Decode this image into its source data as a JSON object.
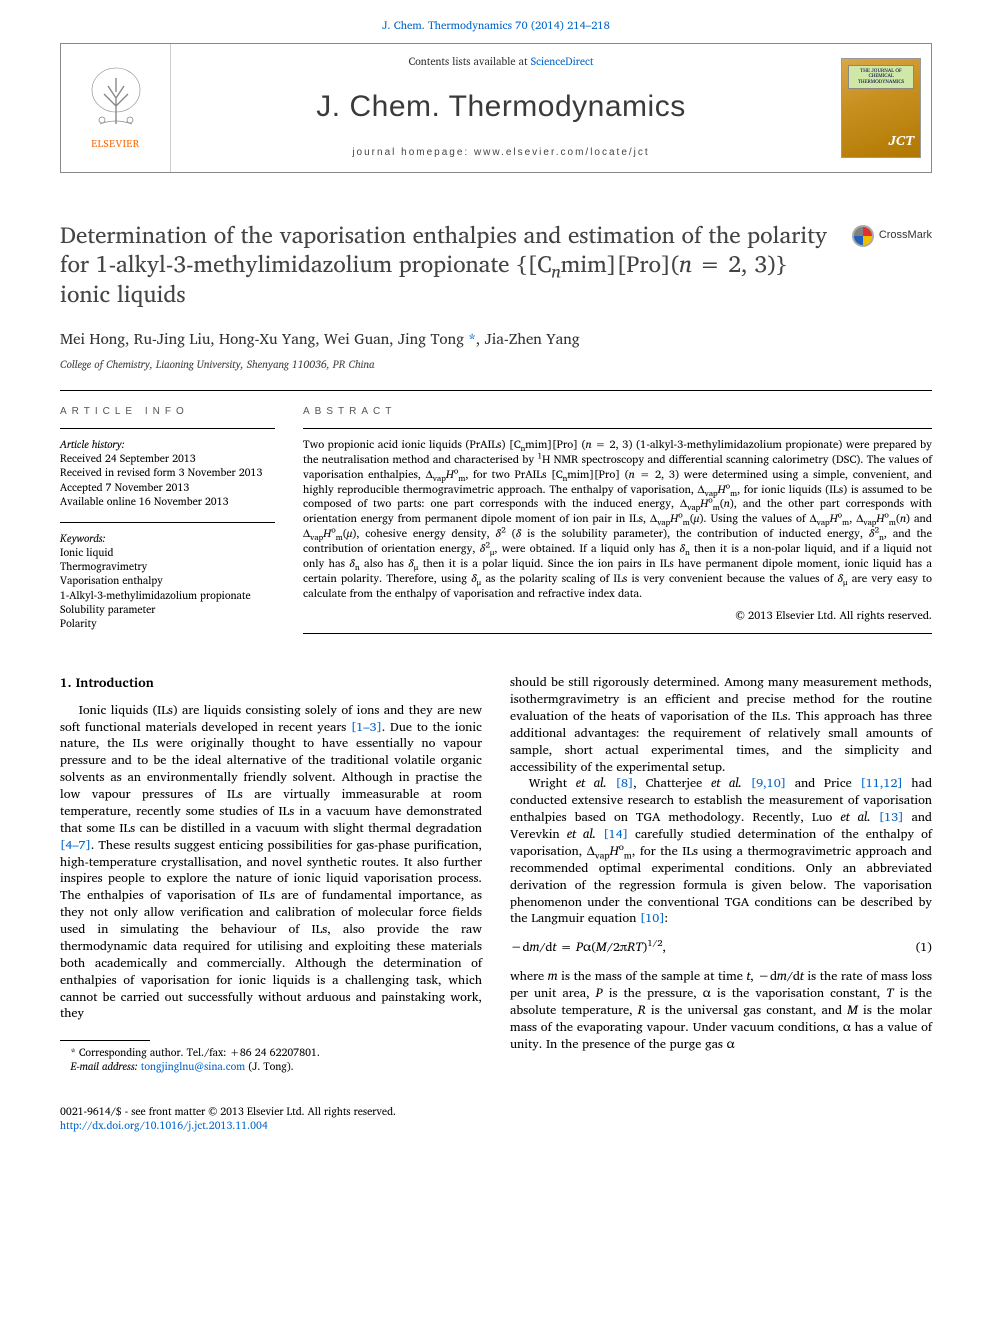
{
  "header": {
    "citation_prefix": "J. Chem. Thermodynamics 70 (2014) 214–218",
    "contents_text": "Contents lists available at ",
    "contents_link": "ScienceDirect",
    "journal_title": "J. Chem. Thermodynamics",
    "homepage_label": "journal homepage: www.elsevier.com/locate/jct",
    "elsevier_label": "ELSEVIER",
    "cover_text": "THE JOURNAL OF CHEMICAL THERMODYNAMICS",
    "cover_jct": "JCT"
  },
  "crossmark": {
    "label": "CrossMark"
  },
  "article": {
    "title_html": "Determination of the vaporisation enthalpies and estimation of the polarity for 1-alkyl-3-methylimidazolium propionate {[C<sub><i>n</i></sub>mim][Pro](<i>n</i> = 2, 3)} ionic liquids",
    "authors_html": "Mei Hong, Ru-Jing Liu, Hong-Xu Yang, Wei Guan, Jing Tong <a class=\"corr\" href=\"#\">*</a>, Jia-Zhen Yang",
    "affiliation": "College of Chemistry, Liaoning University, Shenyang 110036, PR China"
  },
  "info": {
    "heading": "ARTICLE INFO",
    "history_label": "Article history:",
    "history": [
      "Received 24 September 2013",
      "Received in revised form 3 November 2013",
      "Accepted 7 November 2013",
      "Available online 16 November 2013"
    ],
    "keywords_label": "Keywords:",
    "keywords": [
      "Ionic liquid",
      "Thermogravimetry",
      "Vaporisation enthalpy",
      "1-Alkyl-3-methylimidazolium propionate",
      "Solubility parameter",
      "Polarity"
    ]
  },
  "abstract": {
    "heading": "ABSTRACT",
    "text_html": "Two propionic acid ionic liquids (PrAILs) [C<sub>n</sub>mim][Pro] (<i>n</i> = 2, 3) (1-alkyl-3-methylimidazolium propionate) were prepared by the neutralisation method and characterised by <sup>1</sup>H NMR spectroscopy and differential scanning calorimetry (DSC). The values of vaporisation enthalpies, Δ<sub>vap</sub><i>H</i><sup>o</sup><sub>m</sub>, for two PrAILs [C<sub>n</sub>mim][Pro] (<i>n</i> = 2, 3) were determined using a simple, convenient, and highly reproducible thermogravimetric approach. The enthalpy of vaporisation, Δ<sub>vap</sub><i>H</i><sup>o</sup><sub>m</sub>, for ionic liquids (ILs) is assumed to be composed of two parts: one part corresponds with the induced energy, Δ<sub>vap</sub><i>H</i><sup>o</sup><sub>m</sub>(<i>n</i>), and the other part corresponds with orientation energy from permanent dipole moment of ion pair in ILs, Δ<sub>vap</sub><i>H</i><sup>o</sup><sub>m</sub>(<i>μ</i>). Using the values of Δ<sub>vap</sub><i>H</i><sup>o</sup><sub>m</sub>, Δ<sub>vap</sub><i>H</i><sup>o</sup><sub>m</sub>(<i>n</i>) and Δ<sub>vap</sub><i>H</i><sup>o</sup><sub>m</sub>(<i>μ</i>), cohesive energy density, <i>δ</i><sup>2</sup> (<i>δ</i> is the solubility parameter), the contribution of inducted energy, <i>δ</i><sup>2</sup><sub>n</sub>, and the contribution of orientation energy, <i>δ</i><sup>2</sup><sub>μ</sub>, were obtained. If a liquid only has <i>δ</i><sub>n</sub> then it is a non-polar liquid, and if a liquid not only has <i>δ</i><sub>n</sub> also has <i>δ</i><sub>μ</sub> then it is a polar liquid. Since the ion pairs in ILs have permanent dipole moment, ionic liquid has a certain polarity. Therefore, using <i>δ</i><sub>μ</sub> as the polarity scaling of ILs is very convenient because the values of <i>δ</i><sub>μ</sub> are very easy to calculate from the enthalpy of vaporisation and refractive index data.",
    "copyright": "© 2013 Elsevier Ltd. All rights reserved."
  },
  "body": {
    "section1_heading": "1. Introduction",
    "p1_html": "Ionic liquids (ILs) are liquids consisting solely of ions and they are new soft functional materials developed in recent years <a class=\"ref\" href=\"#\">[1–3]</a>. Due to the ionic nature, the ILs were originally thought to have essentially no vapour pressure and to be the ideal alternative of the traditional volatile organic solvents as an environmentally friendly solvent. Although in practise the low vapour pressures of ILs are virtually immeasurable at room temperature, recently some studies of ILs in a vacuum have demonstrated that some ILs can be distilled in a vacuum with slight thermal degradation <a class=\"ref\" href=\"#\">[4–7]</a>. These results suggest enticing possibilities for gas-phase purification, high-temperature crystallisation, and novel synthetic routes. It also further inspires people to explore the nature of ionic liquid vaporisation process. The enthalpies of vaporisation of ILs are of fundamental importance, as they not only allow verification and calibration of molecular force fields used in simulating the behaviour of ILs, also provide the raw thermodynamic data required for utilising and exploiting these materials both academically and commercially. Although the determination of enthalpies of vaporisation for ionic liquids is a challenging task, which cannot be carried out successfully without arduous and painstaking work, they",
    "p2_html": "should be still rigorously determined. Among many measurement methods, isothermgravimetry is an efficient and precise method for the routine evaluation of the heats of vaporisation of the ILs. This approach has three additional advantages: the requirement of relatively small amounts of sample, short actual experimental times, and the simplicity and accessibility of the experimental setup.",
    "p3_html": "Wright <i>et al.</i> <a class=\"ref\" href=\"#\">[8]</a>, Chatterjee <i>et al.</i> <a class=\"ref\" href=\"#\">[9,10]</a> and Price <a class=\"ref\" href=\"#\">[11,12]</a> had conducted extensive research to establish the measurement of vaporisation enthalpies based on TGA methodology. Recently, Luo <i>et al.</i> <a class=\"ref\" href=\"#\">[13]</a> and Verevkin <i>et al.</i> <a class=\"ref\" href=\"#\">[14]</a> carefully studied determination of the enthalpy of vaporisation, Δ<sub>vap</sub><i>H</i><sup>o</sup><sub>m</sub>, for the ILs using a thermogravimetric approach and recommended optimal experimental conditions. Only an abbreviated derivation of the regression formula is given below. The vaporisation phenomenon under the conventional TGA conditions can be described by the Langmuir equation <a class=\"ref\" href=\"#\">[10]</a>:",
    "eq1_html": "−d<i>m</i>/d<i>t</i> = <i>P</i>α(<i>M</i>/2π<i>RT</i>)<sup>1/2</sup>,",
    "eq1_num": "(1)",
    "p4_html": "where <i>m</i> is the mass of the sample at time <i>t</i>, −d<i>m</i>/d<i>t</i> is the rate of mass loss per unit area, <i>P</i> is the pressure, α is the vaporisation constant, <i>T</i> is the absolute temperature, <i>R</i> is the universal gas constant, and <i>M</i> is the molar mass of the evaporating vapour. Under vacuum conditions, α has a value of unity. In the presence of the purge gas α"
  },
  "footnote": {
    "corr_line": "* Corresponding author. Tel./fax: +86 24 62207801.",
    "email_label": "E-mail address: ",
    "email": "tongjinglnu@sina.com",
    "email_suffix": " (J. Tong)."
  },
  "footer": {
    "line1": "0021-9614/$ - see front matter © 2013 Elsevier Ltd. All rights reserved.",
    "doi": "http://dx.doi.org/10.1016/j.jct.2013.11.004"
  },
  "colors": {
    "link": "#0066cc",
    "elsevier_orange": "#ff6600",
    "text": "#000000",
    "heading_gray": "#444444"
  }
}
